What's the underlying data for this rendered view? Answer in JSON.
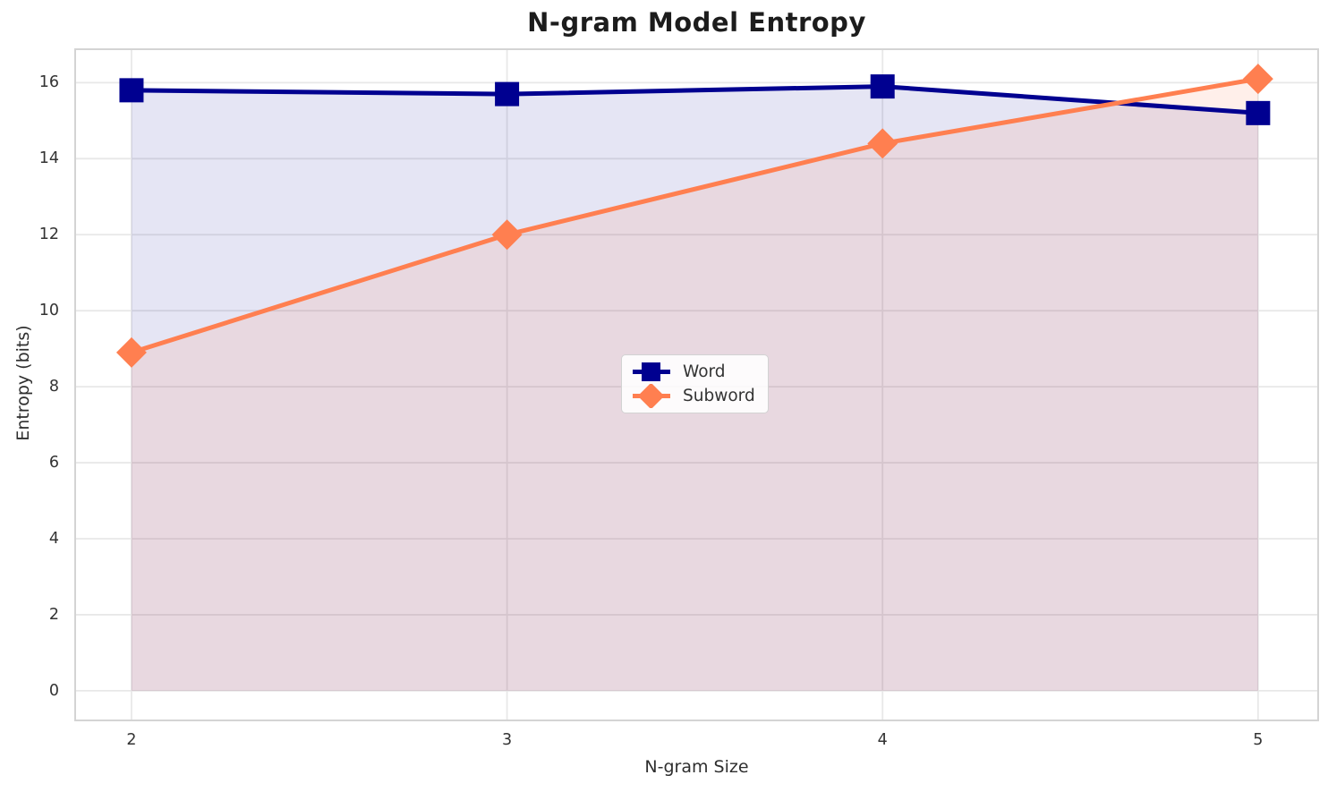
{
  "chart_data": {
    "type": "line",
    "title": "N-gram Model Entropy",
    "xlabel": "N-gram Size",
    "ylabel": "Entropy (bits)",
    "x": [
      2,
      3,
      4,
      5
    ],
    "series": [
      {
        "name": "Word",
        "values": [
          15.8,
          15.7,
          15.9,
          15.2
        ],
        "color": "#000090",
        "marker": "square",
        "fill_opacity": 0.1
      },
      {
        "name": "Subword",
        "values": [
          8.9,
          12.0,
          14.4,
          16.1
        ],
        "color": "#FF7F50",
        "marker": "diamond",
        "fill_opacity": 0.12
      }
    ],
    "x_ticks": [
      2,
      3,
      4,
      5
    ],
    "y_ticks": [
      0,
      2,
      4,
      6,
      8,
      10,
      12,
      14,
      16
    ],
    "xlim": [
      1.85,
      5.16
    ],
    "ylim": [
      -0.78,
      16.88
    ],
    "grid": true,
    "area_fill_baseline": 0,
    "legend_position": "center"
  }
}
